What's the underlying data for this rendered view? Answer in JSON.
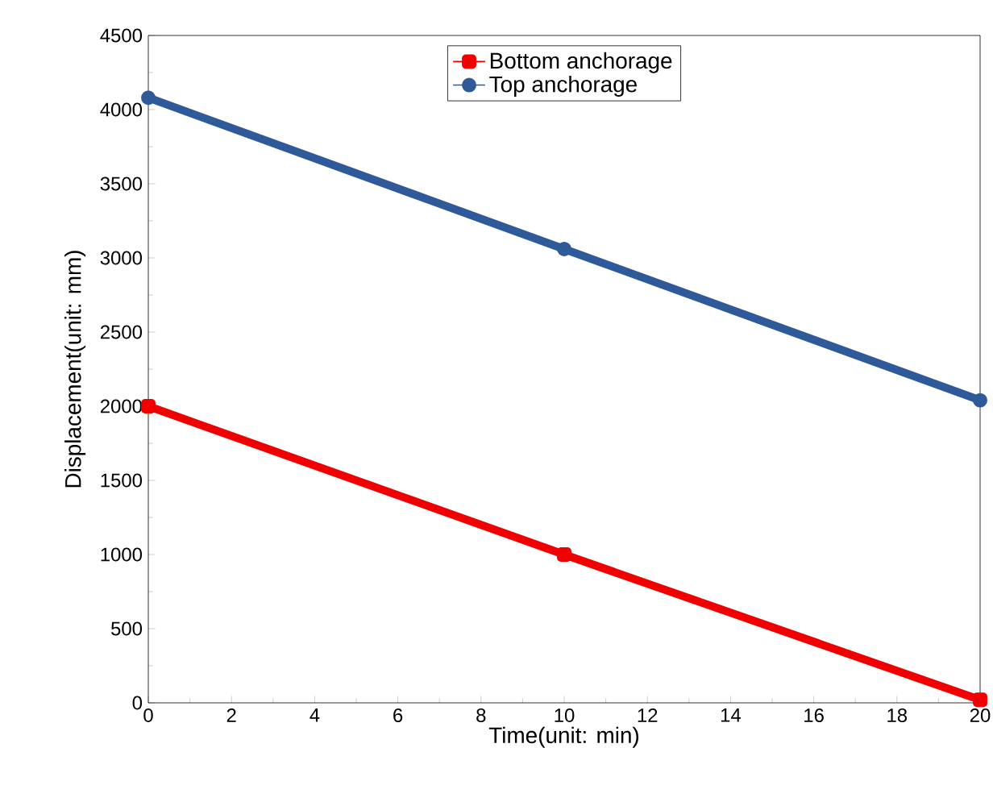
{
  "chart_data": {
    "type": "line",
    "xlabel": "Time(unit: min)",
    "ylabel": "Displacement(unit: mm)",
    "x": [
      0,
      10,
      20
    ],
    "series": [
      {
        "name": "Bottom anchorage",
        "color": "#f00000",
        "values": [
          2000,
          1000,
          20
        ],
        "marker": "square"
      },
      {
        "name": "Top anchorage",
        "color": "#2f5a9a",
        "values": [
          4080,
          3060,
          2040
        ],
        "marker": "circle"
      }
    ],
    "xlim": [
      0,
      20
    ],
    "xticks": [
      0,
      2,
      4,
      6,
      8,
      10,
      12,
      14,
      16,
      18,
      20
    ],
    "ylim": [
      0,
      4500
    ],
    "yticks": [
      0,
      500,
      1000,
      1500,
      2000,
      2500,
      3000,
      3500,
      4000,
      4500
    ],
    "legend": "top",
    "line_style": "solid"
  }
}
